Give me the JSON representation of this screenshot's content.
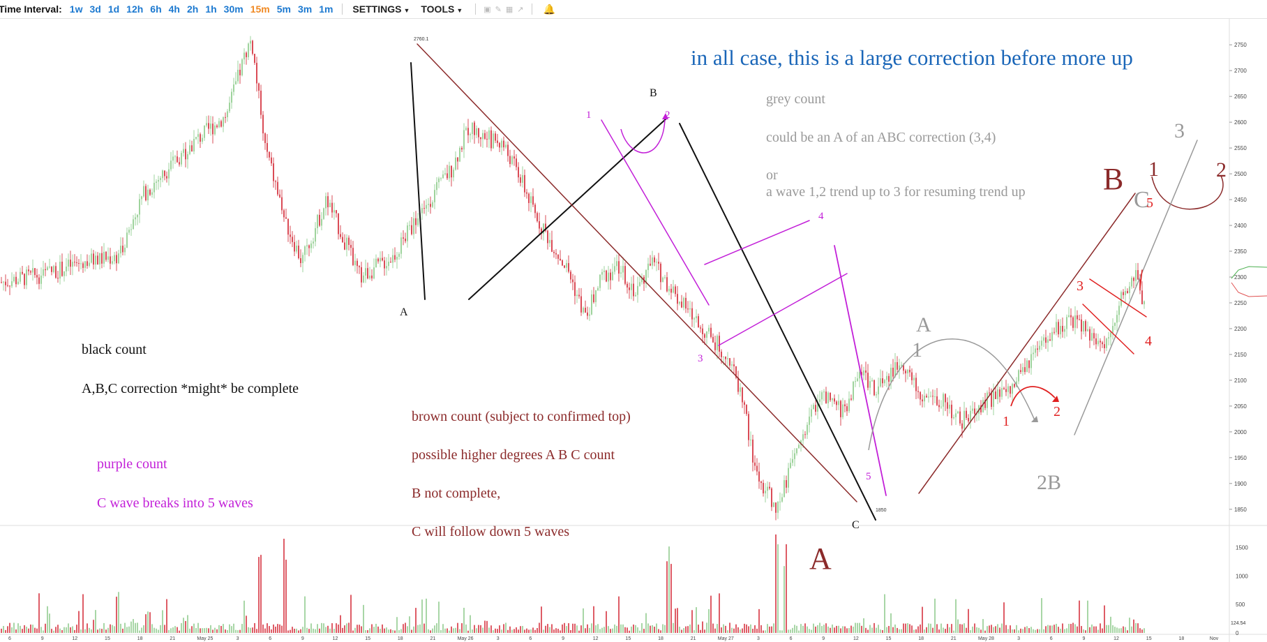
{
  "toolbar": {
    "label": "Time Interval:",
    "intervals": [
      "1w",
      "3d",
      "1d",
      "12h",
      "6h",
      "4h",
      "2h",
      "1h",
      "30m",
      "15m",
      "5m",
      "3m",
      "1m"
    ],
    "active_interval": "15m",
    "settings_label": "SETTINGS",
    "tools_label": "TOOLS"
  },
  "chart_data": {
    "type": "candlestick",
    "ylim": [
      1820,
      2780
    ],
    "price_ticks": [
      1850,
      1900,
      1950,
      2000,
      2050,
      2100,
      2150,
      2200,
      2250,
      2300,
      2350,
      2400,
      2450,
      2500,
      2550,
      2600,
      2650,
      2700,
      2750
    ],
    "volume_ticks": [
      0,
      500,
      1000,
      1500
    ],
    "volume_ylim": [
      0,
      1800
    ],
    "x_ticks": [
      "6",
      "9",
      "12",
      "15",
      "18",
      "21",
      "May 25",
      "3",
      "6",
      "9",
      "12",
      "15",
      "18",
      "21",
      "May 26",
      "3",
      "6",
      "9",
      "12",
      "15",
      "18",
      "21",
      "May 27",
      "3",
      "6",
      "9",
      "12",
      "15",
      "18",
      "21",
      "May 28",
      "3",
      "6",
      "9",
      "12",
      "15",
      "18",
      "Nov"
    ],
    "price_path": [
      [
        0,
        2290
      ],
      [
        10,
        2305
      ],
      [
        20,
        2330
      ],
      [
        28,
        2340
      ],
      [
        34,
        2460
      ],
      [
        46,
        2560
      ],
      [
        54,
        2615
      ],
      [
        59,
        2745
      ],
      [
        60,
        2760.1
      ],
      [
        63,
        2560
      ],
      [
        68,
        2410
      ],
      [
        72,
        2330
      ],
      [
        78,
        2450
      ],
      [
        86,
        2300
      ],
      [
        94,
        2340
      ],
      [
        100,
        2420
      ],
      [
        108,
        2510
      ],
      [
        112,
        2590
      ],
      [
        116,
        2570
      ],
      [
        120,
        2560
      ],
      [
        124,
        2500
      ],
      [
        128,
        2420
      ],
      [
        136,
        2310
      ],
      [
        140,
        2220
      ],
      [
        144,
        2300
      ],
      [
        148,
        2320
      ],
      [
        152,
        2270
      ],
      [
        156,
        2330
      ],
      [
        162,
        2260
      ],
      [
        168,
        2200
      ],
      [
        174,
        2150
      ],
      [
        178,
        2060
      ],
      [
        180,
        1950
      ],
      [
        182,
        1900
      ],
      [
        184,
        1880
      ],
      [
        186,
        1850
      ],
      [
        190,
        1950
      ],
      [
        196,
        2070
      ],
      [
        202,
        2040
      ],
      [
        206,
        2120
      ],
      [
        210,
        2080
      ],
      [
        216,
        2140
      ],
      [
        220,
        2070
      ],
      [
        226,
        2060
      ],
      [
        230,
        2020
      ],
      [
        236,
        2060
      ],
      [
        242,
        2080
      ],
      [
        246,
        2130
      ],
      [
        252,
        2190
      ],
      [
        256,
        2220
      ],
      [
        260,
        2200
      ],
      [
        264,
        2160
      ],
      [
        268,
        2250
      ],
      [
        272,
        2300
      ],
      [
        274,
        2250
      ]
    ],
    "volume_spikes": [
      [
        28,
        700
      ],
      [
        62,
        1700
      ],
      [
        68,
        1600
      ],
      [
        160,
        1450
      ],
      [
        186,
        1700
      ],
      [
        188,
        1500
      ]
    ],
    "labels": {
      "high_price": "2760.1",
      "low_price": "1850",
      "volume_price": "124.54"
    },
    "annotations": {
      "headline": "in all case, this is a large correction before more up",
      "grey_title": "grey count",
      "grey_line1": "could be an A of an ABC correction (3,4)",
      "grey_or": "or",
      "grey_line2": "a wave 1,2 trend up to 3 for resuming trend up",
      "black_title": "black count",
      "black_line1": "A,B,C correction *might* be complete",
      "purple_title": "purple count",
      "purple_line1": "C wave breaks into 5 waves",
      "brown_title": "brown count (subject to confirmed top)",
      "brown_line1": "possible higher degrees A B C count",
      "brown_line2": "B not complete,",
      "brown_line3": "C will follow down 5 waves",
      "wave_A_black": "A",
      "wave_B_black": "B",
      "wave_C_black": "C",
      "wave_A_brown": "A",
      "wave_B_brown": "B",
      "wave_C_grey": "C",
      "wave_A_grey": "A",
      "wave_1_grey": "1",
      "wave_2B_grey": "2B",
      "wave_3_grey": "3",
      "p1": "1",
      "p2": "2",
      "p3": "3",
      "p4": "4",
      "p5": "5",
      "r1": "1",
      "r2": "2",
      "r3": "3",
      "r4": "4",
      "b1": "1",
      "b2": "2",
      "b5": "5"
    },
    "colors": {
      "up": "#86c884",
      "down": "#d11f2c",
      "black": "#111111",
      "brown": "#8b2a2a",
      "purple": "#c21fd8",
      "grey": "#999999",
      "red": "#e02020",
      "blue": "#1a66b8"
    }
  }
}
